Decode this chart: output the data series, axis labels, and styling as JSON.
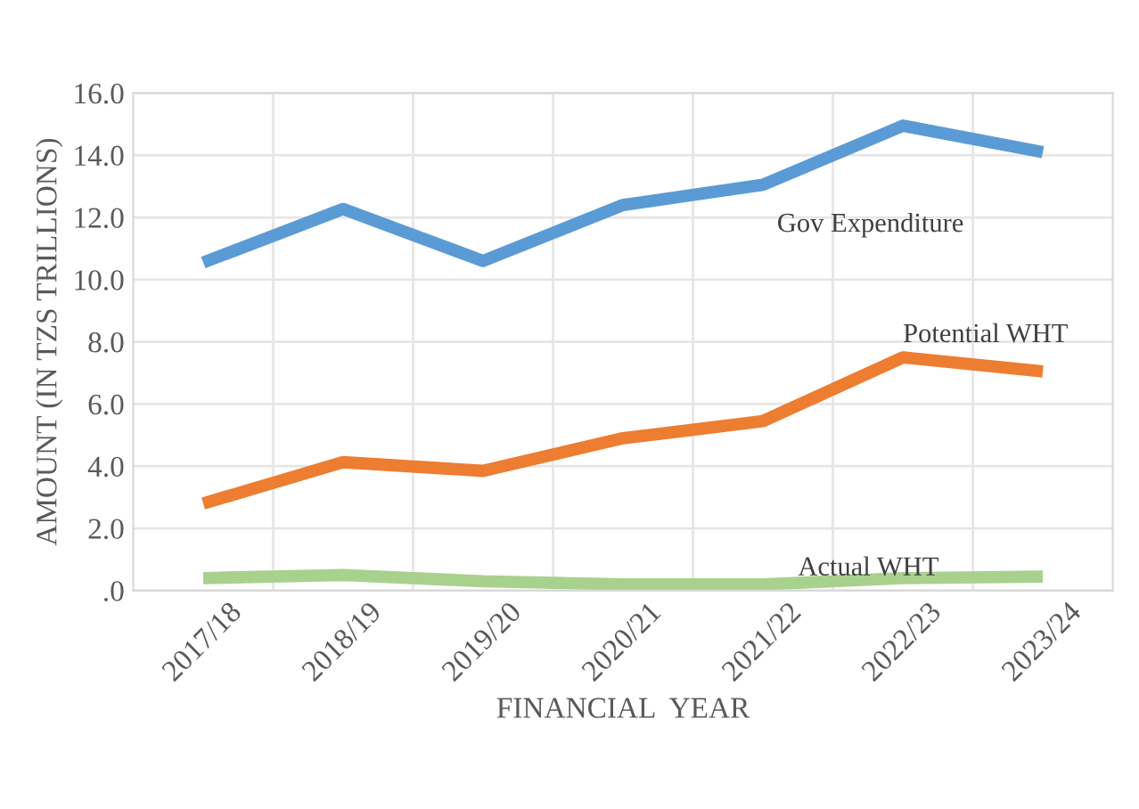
{
  "chart_data": {
    "type": "line",
    "xlabel": "FINANCIAL  YEAR",
    "ylabel": "AMOUNT (IN TZS TRILLIONS)",
    "categories": [
      "2017/18",
      "2018/19",
      "2019/20",
      "2020/21",
      "2021/22",
      "2022/23",
      "2023/24"
    ],
    "series": [
      {
        "name": "Gov Expenditure",
        "color": "#5b9bd5",
        "values": [
          10.55,
          12.27,
          10.6,
          12.4,
          13.05,
          14.95,
          14.1
        ]
      },
      {
        "name": "Potential WHT",
        "color": "#ed7d31",
        "values": [
          2.8,
          4.13,
          3.85,
          4.9,
          5.45,
          7.5,
          7.05
        ]
      },
      {
        "name": "Actual WHT",
        "color": "#a9d18e",
        "values": [
          0.4,
          0.5,
          0.3,
          0.2,
          0.2,
          0.4,
          0.45
        ]
      }
    ],
    "ylim": [
      0,
      16
    ],
    "yticks": [
      {
        "value": 0,
        "label": ".0"
      },
      {
        "value": 2,
        "label": "2.0"
      },
      {
        "value": 4,
        "label": "4.0"
      },
      {
        "value": 6,
        "label": "6.0"
      },
      {
        "value": 8,
        "label": "8.0"
      },
      {
        "value": 10,
        "label": "10.0"
      },
      {
        "value": 12,
        "label": "12.0"
      },
      {
        "value": 14,
        "label": "14.0"
      },
      {
        "value": 16,
        "label": "16.0"
      }
    ],
    "grid": true,
    "legend": false,
    "marker": "none",
    "line_style": "solid"
  }
}
